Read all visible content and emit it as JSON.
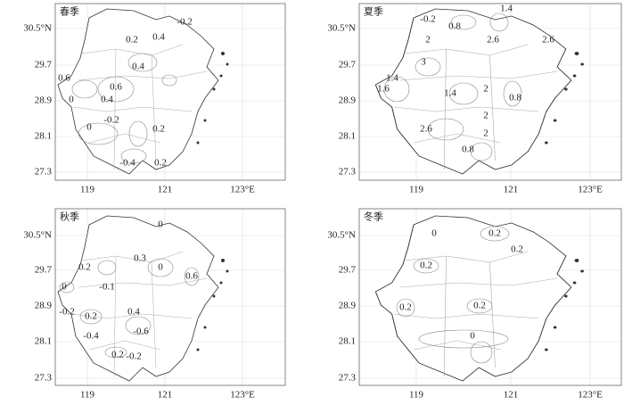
{
  "panels": [
    {
      "title": "春季",
      "contour_labels": [
        "-0.2",
        "0.4",
        "0.2",
        "0.4",
        "0.6",
        "0",
        "0.6",
        "0.4",
        "-0.2",
        "0",
        "0.2",
        "-0.4",
        "0.2"
      ]
    },
    {
      "title": "夏季",
      "contour_labels": [
        "1.4",
        "-0.2",
        "0.8",
        "2",
        "2.6",
        "2.6",
        "3",
        "1.4",
        "1.6",
        "1.4",
        "2",
        "0.8",
        "2",
        "2.6",
        "2",
        "0.8"
      ]
    },
    {
      "title": "秋季",
      "contour_labels": [
        "0",
        "0.2",
        "0.3",
        "0",
        "0.6",
        "-0.1",
        "0",
        "-0.2",
        "0.2",
        "0.4",
        "-0.4",
        "-0.6",
        "0.2",
        "-0.2"
      ]
    },
    {
      "title": "冬季",
      "contour_labels": [
        "0",
        "0.2",
        "0.2",
        "0.2",
        "0.2",
        "0.2",
        "0"
      ]
    }
  ],
  "y_ticks": [
    "30.5°N",
    "29.7",
    "28.9",
    "28.1",
    "27.3"
  ],
  "x_ticks": [
    "119",
    "121",
    "123°E"
  ]
}
